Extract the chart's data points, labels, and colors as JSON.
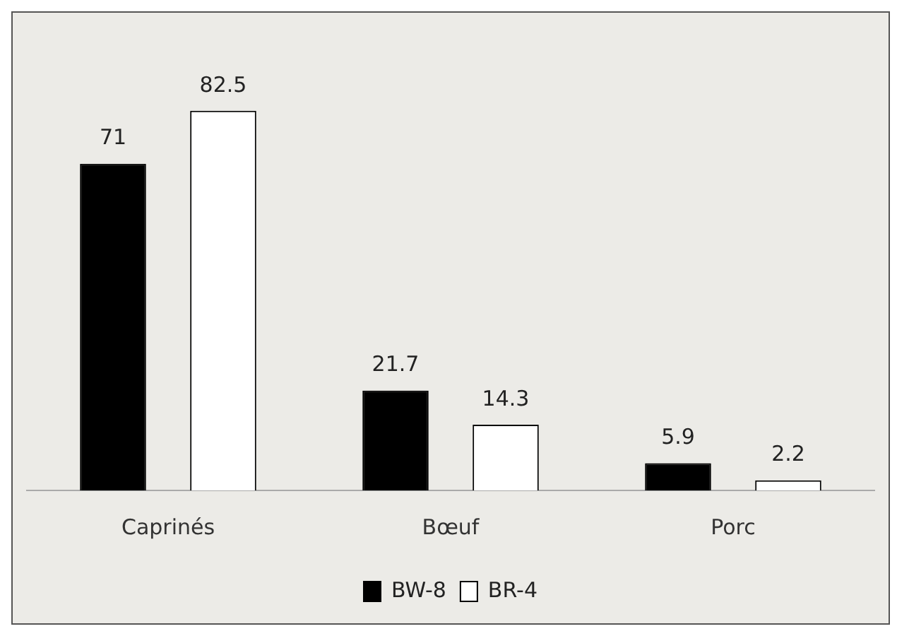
{
  "chart_data": {
    "type": "bar",
    "categories": [
      "Caprinés",
      "Bœuf",
      "Porc"
    ],
    "series": [
      {
        "name": "BW-8",
        "color": "#000000",
        "values": [
          71,
          21.7,
          5.9
        ]
      },
      {
        "name": "BR-4",
        "color": "#ffffff",
        "values": [
          82.5,
          14.3,
          2.2
        ]
      }
    ],
    "data_labels": true,
    "legend": "bottom",
    "grid": false
  }
}
